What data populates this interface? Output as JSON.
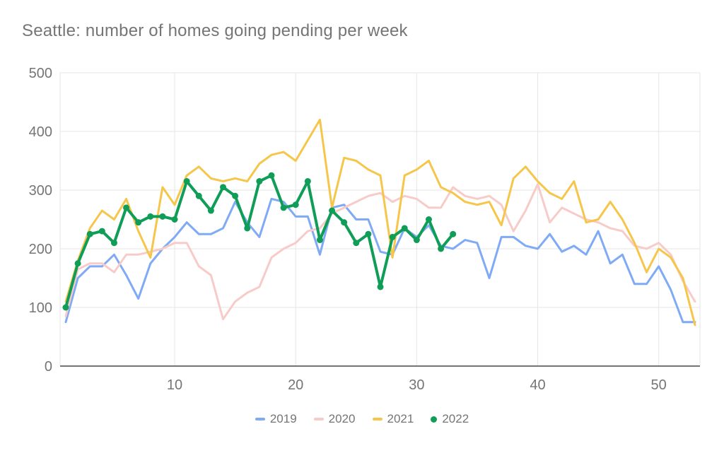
{
  "header": {
    "title": "Seattle: number of homes going pending per week"
  },
  "colors": {
    "background": "#ffffff",
    "title_text": "#757575",
    "axis_text": "#757575",
    "gridline": "#e6e6e6",
    "axis_line": "#757575"
  },
  "chart_data": {
    "type": "line",
    "title": "Seattle: number of homes going pending per week",
    "xlabel": "",
    "ylabel": "",
    "x_start": 1,
    "x_step": 1,
    "x_range": [
      1,
      53
    ],
    "ylim": [
      0,
      500
    ],
    "x_ticks": [
      10,
      20,
      30,
      40,
      50
    ],
    "y_ticks": [
      0,
      100,
      200,
      300,
      400,
      500
    ],
    "grid": true,
    "legend_position": "bottom",
    "series": [
      {
        "name": "2019",
        "color": "#7faaf5",
        "marker": "none",
        "values": [
          75,
          150,
          170,
          170,
          190,
          155,
          115,
          175,
          200,
          220,
          245,
          225,
          225,
          235,
          280,
          245,
          220,
          285,
          280,
          255,
          255,
          190,
          270,
          275,
          250,
          250,
          195,
          190,
          235,
          220,
          240,
          205,
          200,
          215,
          210,
          150,
          220,
          220,
          205,
          200,
          225,
          195,
          205,
          190,
          230,
          175,
          190,
          140,
          140,
          170,
          130,
          75,
          75
        ]
      },
      {
        "name": "2020",
        "color": "#f7cbc7",
        "marker": "none",
        "values": [
          85,
          165,
          175,
          175,
          160,
          190,
          190,
          195,
          200,
          210,
          210,
          170,
          155,
          80,
          110,
          125,
          135,
          185,
          200,
          210,
          230,
          235,
          260,
          270,
          280,
          290,
          295,
          280,
          290,
          285,
          270,
          270,
          305,
          290,
          285,
          290,
          275,
          230,
          265,
          310,
          245,
          270,
          260,
          250,
          245,
          235,
          230,
          205,
          200,
          210,
          190,
          145,
          110
        ]
      },
      {
        "name": "2021",
        "color": "#f6c64b",
        "marker": "none",
        "values": [
          110,
          180,
          235,
          265,
          250,
          285,
          230,
          185,
          305,
          275,
          325,
          340,
          320,
          315,
          320,
          315,
          345,
          360,
          365,
          350,
          385,
          420,
          270,
          355,
          350,
          335,
          325,
          185,
          325,
          335,
          350,
          305,
          295,
          280,
          275,
          280,
          240,
          320,
          340,
          315,
          295,
          285,
          315,
          245,
          250,
          280,
          250,
          210,
          160,
          200,
          185,
          150,
          70
        ]
      },
      {
        "name": "2022",
        "color": "#0f9d58",
        "marker": "circle",
        "values": [
          100,
          175,
          225,
          230,
          210,
          270,
          245,
          255,
          255,
          250,
          315,
          290,
          265,
          305,
          290,
          235,
          315,
          325,
          270,
          275,
          315,
          215,
          265,
          245,
          210,
          225,
          135,
          220,
          235,
          215,
          250,
          200,
          225
        ]
      }
    ]
  }
}
